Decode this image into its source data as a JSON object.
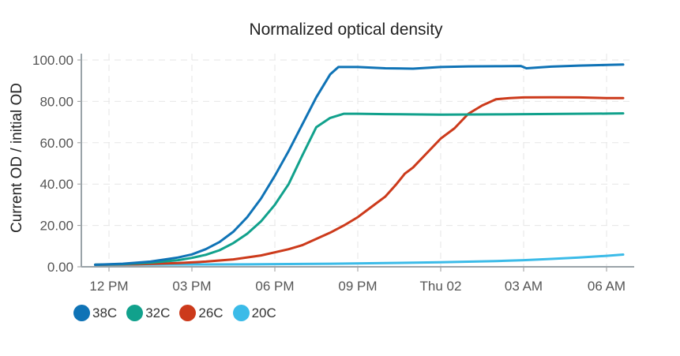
{
  "chart_data": {
    "type": "line",
    "title": "Normalized optical density",
    "xlabel": "",
    "ylabel": "Current OD / initial OD",
    "x_unit": "hours",
    "x_ticks": [
      {
        "x": 12,
        "label": "12 PM"
      },
      {
        "x": 15,
        "label": "03 PM"
      },
      {
        "x": 18,
        "label": "06 PM"
      },
      {
        "x": 21,
        "label": "09 PM"
      },
      {
        "x": 24,
        "label": "Thu 02"
      },
      {
        "x": 27,
        "label": "03 AM"
      },
      {
        "x": 30,
        "label": "06 AM"
      }
    ],
    "xlim": [
      11.0,
      31.0
    ],
    "ylim": [
      0,
      100
    ],
    "y_ticks": [
      "0.00",
      "20.00",
      "40.00",
      "60.00",
      "80.00",
      "100.00"
    ],
    "grid": true,
    "legend_position": "bottom-left",
    "series": [
      {
        "name": "38C",
        "color": "#0f73b6",
        "points": [
          [
            11.5,
            1
          ],
          [
            12.5,
            1.5
          ],
          [
            13.5,
            2.5
          ],
          [
            14.5,
            4.5
          ],
          [
            15,
            6
          ],
          [
            15.5,
            8.5
          ],
          [
            16,
            12
          ],
          [
            16.5,
            17
          ],
          [
            17,
            24
          ],
          [
            17.5,
            33
          ],
          [
            18,
            44
          ],
          [
            18.5,
            56
          ],
          [
            19,
            69
          ],
          [
            19.5,
            82
          ],
          [
            20,
            93
          ],
          [
            20.3,
            96.6
          ],
          [
            21,
            96.6
          ],
          [
            22,
            96
          ],
          [
            23,
            95.8
          ],
          [
            24,
            96.6
          ],
          [
            25,
            96.9
          ],
          [
            26,
            97
          ],
          [
            26.9,
            97.1
          ],
          [
            27.1,
            96
          ],
          [
            28,
            96.8
          ],
          [
            29,
            97.3
          ],
          [
            30,
            97.6
          ],
          [
            30.6,
            97.8
          ]
        ]
      },
      {
        "name": "32C",
        "color": "#11a18c",
        "points": [
          [
            11.5,
            1
          ],
          [
            12.5,
            1.3
          ],
          [
            13.5,
            2
          ],
          [
            14.5,
            3.2
          ],
          [
            15,
            4.3
          ],
          [
            15.5,
            5.8
          ],
          [
            16,
            8
          ],
          [
            16.5,
            11.5
          ],
          [
            17,
            16
          ],
          [
            17.5,
            22
          ],
          [
            18,
            30
          ],
          [
            18.5,
            40
          ],
          [
            19,
            54
          ],
          [
            19.5,
            67.5
          ],
          [
            20,
            72
          ],
          [
            20.5,
            74
          ],
          [
            21,
            74
          ],
          [
            22,
            73.8
          ],
          [
            24,
            73.6
          ],
          [
            26,
            73.7
          ],
          [
            28,
            73.9
          ],
          [
            30,
            74.1
          ],
          [
            30.6,
            74.2
          ]
        ]
      },
      {
        "name": "26C",
        "color": "#cc3a1b",
        "points": [
          [
            11.5,
            1
          ],
          [
            13,
            1.2
          ],
          [
            14.5,
            1.8
          ],
          [
            15.5,
            2.5
          ],
          [
            16.5,
            3.6
          ],
          [
            17.5,
            5.5
          ],
          [
            18.5,
            8.5
          ],
          [
            19,
            10.5
          ],
          [
            19.5,
            13.5
          ],
          [
            20,
            16.5
          ],
          [
            20.5,
            20
          ],
          [
            21,
            24
          ],
          [
            21.5,
            29
          ],
          [
            22,
            34
          ],
          [
            22.4,
            40
          ],
          [
            22.7,
            45
          ],
          [
            23,
            48
          ],
          [
            23.5,
            55
          ],
          [
            24,
            62
          ],
          [
            24.5,
            67
          ],
          [
            25,
            74
          ],
          [
            25.5,
            78
          ],
          [
            26,
            81
          ],
          [
            26.5,
            81.6
          ],
          [
            27,
            81.9
          ],
          [
            28,
            82
          ],
          [
            29,
            81.9
          ],
          [
            30,
            81.6
          ],
          [
            30.6,
            81.6
          ]
        ]
      },
      {
        "name": "20C",
        "color": "#3bbbe8",
        "points": [
          [
            11.5,
            1
          ],
          [
            14,
            1.1
          ],
          [
            17,
            1.2
          ],
          [
            20,
            1.5
          ],
          [
            22,
            1.8
          ],
          [
            24,
            2.2
          ],
          [
            26,
            2.8
          ],
          [
            27,
            3.2
          ],
          [
            28,
            3.8
          ],
          [
            29,
            4.5
          ],
          [
            30,
            5.3
          ],
          [
            30.6,
            5.9
          ]
        ]
      }
    ]
  }
}
